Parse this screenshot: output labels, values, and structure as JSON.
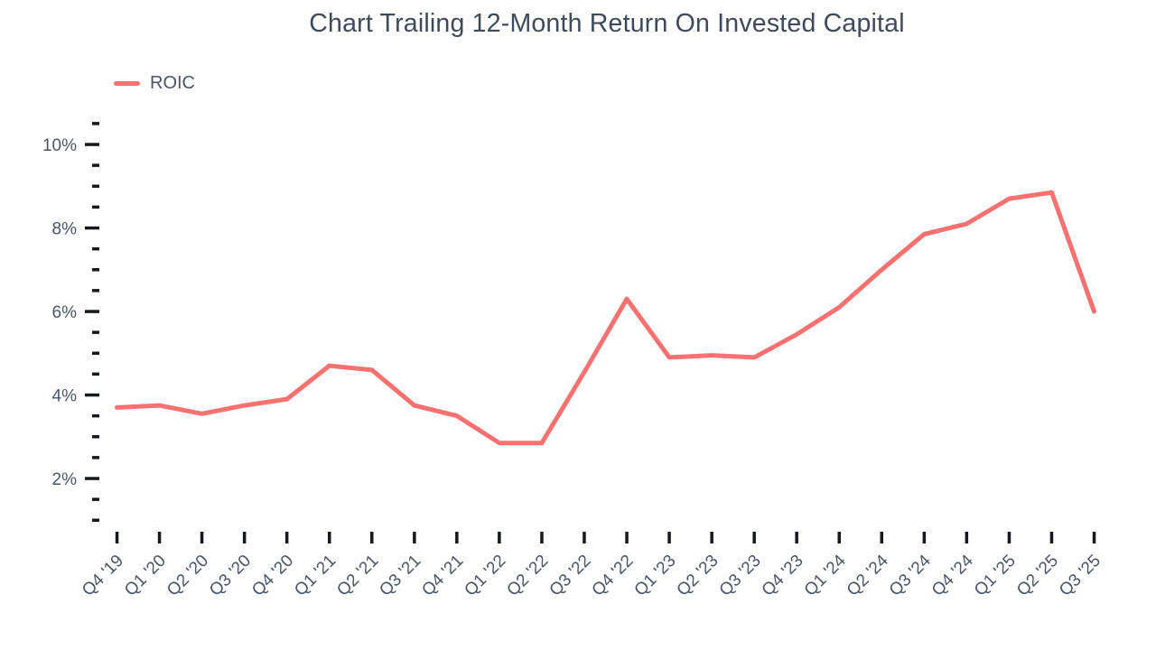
{
  "title": "Chart Trailing 12-Month Return On Invested Capital",
  "legend": {
    "items": [
      {
        "label": "ROIC",
        "color": "#F87171"
      }
    ]
  },
  "colors": {
    "line": "#F87171",
    "title_text": "#3E4A5B",
    "axis_text": "#4A5568",
    "tick_mark": "#15181E",
    "background": "#FFFFFF"
  },
  "chart_data": {
    "type": "line",
    "title": "Chart Trailing 12-Month Return On Invested Capital",
    "categories": [
      "Q4 '19",
      "Q1 '20",
      "Q2 '20",
      "Q3 '20",
      "Q4 '20",
      "Q1 '21",
      "Q2 '21",
      "Q3 '21",
      "Q4 '21",
      "Q1 '22",
      "Q2 '22",
      "Q3 '22",
      "Q4 '22",
      "Q1 '23",
      "Q2 '23",
      "Q3 '23",
      "Q4 '23",
      "Q1 '24",
      "Q2 '24",
      "Q3 '24",
      "Q4 '24",
      "Q1 '25",
      "Q2 '25",
      "Q3 '25"
    ],
    "series": [
      {
        "name": "ROIC",
        "color": "#F87171",
        "values": [
          3.7,
          3.75,
          3.55,
          3.75,
          3.9,
          4.7,
          4.6,
          3.75,
          3.5,
          2.85,
          2.85,
          4.55,
          6.3,
          4.9,
          4.95,
          4.9,
          5.45,
          6.1,
          7.0,
          7.85,
          8.1,
          8.7,
          8.85,
          6.0
        ]
      }
    ],
    "xlabel": "",
    "ylabel": "",
    "y_unit": "%",
    "y_major_ticks": [
      2,
      4,
      6,
      8,
      10
    ],
    "y_minor_tick_step": 0.5,
    "y_tick_range": [
      1,
      10.5
    ],
    "ylim": [
      0.7,
      11.2
    ],
    "grid": false,
    "legend_position": "top-left",
    "x_label_rotation": -45
  }
}
